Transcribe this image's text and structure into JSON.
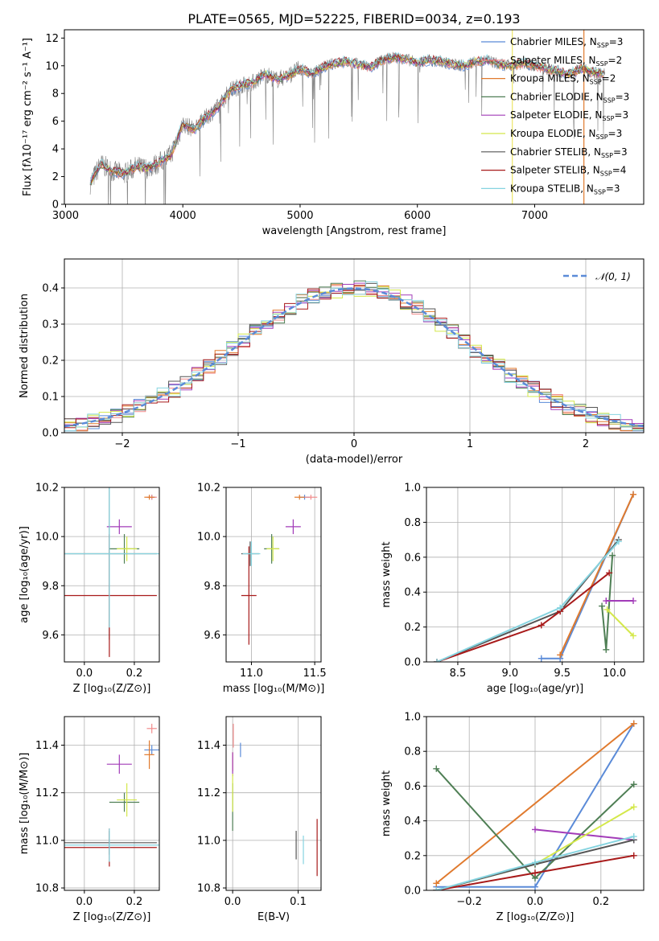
{
  "figure": {
    "title": "PLATE=0565, MJD=52225, FIBERID=0034, z=0.193"
  },
  "colors": {
    "Chabrier MILES": "#5b8bd8",
    "Salpeter MILES": "#f28c8c",
    "Kroupa MILES": "#e07a2e",
    "Chabrier ELODIE": "#4f7f55",
    "Salpeter ELODIE": "#a23bb8",
    "Kroupa ELODIE": "#d4e84a",
    "Chabrier STELIB": "#555555",
    "Salpeter STELIB": "#a81a1a",
    "Kroupa STELIB": "#86d4e0",
    "data": "#808080",
    "gaussian": "#5b8bd8"
  },
  "chart_data": [
    {
      "id": "spectrum",
      "type": "line",
      "title": "PLATE=0565, MJD=52225, FIBERID=0034, z=0.193",
      "xlabel": "wavelength [Angstrom, rest frame]",
      "ylabel": "Flux [fλ10⁻¹⁷ erg cm⁻² s⁻¹ A⁻¹]",
      "xlim": [
        2990,
        7930
      ],
      "ylim": [
        0,
        12.6
      ],
      "xticks": [
        "3000",
        "4000",
        "5000",
        "6000",
        "7000"
      ],
      "yticks": [
        "0",
        "2",
        "4",
        "6",
        "8",
        "10",
        "12"
      ],
      "grid": false,
      "legend_position": "top-right",
      "legend": [
        "Chabrier MILES, N_SSP=3",
        "Salpeter MILES, N_SSP=2",
        "Kroupa MILES, N_SSP=2",
        "Chabrier ELODIE, N_SSP=3",
        "Salpeter ELODIE, N_SSP=3",
        "Kroupa ELODIE, N_SSP=3",
        "Chabrier STELIB, N_SSP=3",
        "Salpeter STELIB, N_SSP=4",
        "Kroupa STELIB, N_SSP=3"
      ],
      "continuum": {
        "x": [
          3210,
          3300,
          3400,
          3500,
          3600,
          3700,
          3800,
          3900,
          4000,
          4100,
          4200,
          4300,
          4400,
          4500,
          4600,
          4700,
          4800,
          4900,
          5000,
          5100,
          5200,
          5300,
          5400,
          5500,
          5600,
          5700,
          5800,
          5900,
          6000,
          6100,
          6200,
          6300,
          6400,
          6500,
          6600,
          6700,
          6800,
          6900,
          7000,
          7100,
          7200,
          7300,
          7400,
          7500,
          7600
        ],
        "y": [
          1.5,
          2.9,
          2.4,
          2.2,
          2.7,
          2.6,
          3.0,
          3.6,
          5.8,
          5.4,
          6.3,
          7.0,
          8.2,
          8.6,
          8.8,
          9.4,
          9.0,
          9.3,
          9.8,
          9.4,
          9.9,
          10.2,
          10.3,
          10.1,
          9.9,
          10.4,
          10.6,
          10.5,
          10.2,
          10.4,
          10.3,
          10.1,
          10.0,
          10.3,
          10.4,
          10.1,
          10.0,
          10.2,
          10.0,
          9.8,
          9.6,
          9.4,
          9.8,
          9.5,
          9.4
        ]
      }
    },
    {
      "id": "residuals",
      "type": "histogram",
      "xlabel": "(data-model)/error",
      "ylabel": "Normed distribution",
      "xlim": [
        -2.5,
        2.5
      ],
      "ylim": [
        0,
        0.48
      ],
      "xticks": [
        "−2",
        "−1",
        "0",
        "1",
        "2"
      ],
      "yticks": [
        "0.0",
        "0.1",
        "0.2",
        "0.3",
        "0.4"
      ],
      "grid": true,
      "legend_position": "top-right",
      "legend": [
        "𝒩(0, 1)"
      ]
    },
    {
      "id": "age-vs-Z",
      "type": "scatter",
      "xlabel": "Z [log₁₀(Z/Z⊙)]",
      "ylabel": "age  [log₁₀(age/yr)]",
      "xlim": [
        -0.08,
        0.3
      ],
      "ylim": [
        9.49,
        10.2
      ],
      "xticks": [
        "0.0",
        "0.2"
      ],
      "yticks": [
        "9.6",
        "9.8",
        "10.0",
        "10.2"
      ],
      "grid": true,
      "points": [
        {
          "series": "Chabrier MILES",
          "x": 0.27,
          "y": 10.16,
          "xerr": 0.015,
          "yerr": 0.01
        },
        {
          "series": "Salpeter MILES",
          "x": 0.27,
          "y": 10.16,
          "xerr": 0.02,
          "yerr": 0.01
        },
        {
          "series": "Kroupa MILES",
          "x": 0.26,
          "y": 10.16,
          "xerr": 0.02,
          "yerr": 0.01
        },
        {
          "series": "Chabrier ELODIE",
          "x": 0.16,
          "y": 9.95,
          "xerr": 0.06,
          "yerr": 0.06
        },
        {
          "series": "Salpeter ELODIE",
          "x": 0.14,
          "y": 10.04,
          "xerr": 0.05,
          "yerr": 0.03
        },
        {
          "series": "Kroupa ELODIE",
          "x": 0.17,
          "y": 9.95,
          "xerr": 0.04,
          "yerr": 0.05
        },
        {
          "series": "Chabrier STELIB",
          "x": 0.1,
          "y": 9.93,
          "xerr": 0.19,
          "yerr": 0.35
        },
        {
          "series": "Salpeter STELIB",
          "x": 0.1,
          "y": 9.76,
          "xerr": 0.19,
          "yerr": 0.25
        },
        {
          "series": "Kroupa STELIB",
          "x": 0.1,
          "y": 9.93,
          "xerr": 0.2,
          "yerr": 0.3
        }
      ]
    },
    {
      "id": "age-vs-mass",
      "type": "scatter",
      "xlabel": "mass [log₁₀(M/M⊙)]",
      "ylabel": "",
      "xlim": [
        10.8,
        11.55
      ],
      "ylim": [
        9.49,
        10.2
      ],
      "xticks": [
        "11.0",
        "11.5"
      ],
      "yticks": [
        "9.6",
        "9.8",
        "10.0",
        "10.2"
      ],
      "grid": true,
      "points": [
        {
          "series": "Chabrier MILES",
          "x": 11.42,
          "y": 10.16,
          "xerr": 0.04,
          "yerr": 0.01
        },
        {
          "series": "Salpeter MILES",
          "x": 11.47,
          "y": 10.16,
          "xerr": 0.05,
          "yerr": 0.01
        },
        {
          "series": "Kroupa MILES",
          "x": 11.38,
          "y": 10.16,
          "xerr": 0.04,
          "yerr": 0.01
        },
        {
          "series": "Chabrier ELODIE",
          "x": 11.16,
          "y": 9.95,
          "xerr": 0.06,
          "yerr": 0.06
        },
        {
          "series": "Salpeter ELODIE",
          "x": 11.33,
          "y": 10.04,
          "xerr": 0.06,
          "yerr": 0.03
        },
        {
          "series": "Kroupa ELODIE",
          "x": 11.17,
          "y": 9.95,
          "xerr": 0.05,
          "yerr": 0.05
        },
        {
          "series": "Chabrier STELIB",
          "x": 10.99,
          "y": 9.93,
          "xerr": 0.07,
          "yerr": 0.05
        },
        {
          "series": "Salpeter STELIB",
          "x": 10.98,
          "y": 9.76,
          "xerr": 0.06,
          "yerr": 0.2
        },
        {
          "series": "Kroupa STELIB",
          "x": 11.0,
          "y": 9.93,
          "xerr": 0.07,
          "yerr": 0.05
        }
      ]
    },
    {
      "id": "weight-vs-age",
      "type": "line",
      "xlabel": "age  [log₁₀(age/yr)]",
      "ylabel": "mass weight",
      "xlim": [
        8.2,
        10.28
      ],
      "ylim": [
        0,
        1.0
      ],
      "xticks": [
        "8.5",
        "9.0",
        "9.5",
        "10.0"
      ],
      "yticks": [
        "0.0",
        "0.2",
        "0.4",
        "0.6",
        "0.8",
        "1.0"
      ],
      "grid": true,
      "series": [
        {
          "series": "Chabrier MILES",
          "x": [
            9.3,
            9.48,
            10.18
          ],
          "y": [
            0.02,
            0.02,
            0.96
          ]
        },
        {
          "series": "Kroupa MILES",
          "x": [
            9.48,
            10.18
          ],
          "y": [
            0.04,
            0.96
          ]
        },
        {
          "series": "Chabrier ELODIE",
          "x": [
            9.88,
            9.92,
            9.98
          ],
          "y": [
            0.32,
            0.07,
            0.61
          ]
        },
        {
          "series": "Salpeter ELODIE",
          "x": [
            9.92,
            10.18
          ],
          "y": [
            0.35,
            0.35
          ]
        },
        {
          "series": "Kroupa ELODIE",
          "x": [
            9.93,
            10.18
          ],
          "y": [
            0.3,
            0.15
          ]
        },
        {
          "series": "Chabrier STELIB",
          "x": [
            8.3,
            9.48,
            10.04
          ],
          "y": [
            0.0,
            0.29,
            0.7
          ]
        },
        {
          "series": "Salpeter STELIB",
          "x": [
            8.3,
            9.3,
            9.48,
            9.95
          ],
          "y": [
            0.0,
            0.21,
            0.29,
            0.51
          ]
        },
        {
          "series": "Kroupa STELIB",
          "x": [
            8.3,
            9.48,
            10.04
          ],
          "y": [
            0.0,
            0.31,
            0.69
          ]
        }
      ]
    },
    {
      "id": "mass-vs-Z",
      "type": "scatter",
      "xlabel": "Z [log₁₀(Z/Z⊙)]",
      "ylabel": "mass [log₁₀(M/M⊙)]",
      "xlim": [
        -0.08,
        0.3
      ],
      "ylim": [
        10.79,
        11.52
      ],
      "xticks": [
        "0.0",
        "0.2"
      ],
      "yticks": [
        "10.8",
        "11.0",
        "11.2",
        "11.4"
      ],
      "grid": true,
      "points": [
        {
          "series": "Chabrier MILES",
          "x": 0.27,
          "y": 11.38,
          "xerr": 0.03,
          "yerr": 0.02
        },
        {
          "series": "Salpeter MILES",
          "x": 0.27,
          "y": 11.47,
          "xerr": 0.02,
          "yerr": 0.02
        },
        {
          "series": "Kroupa MILES",
          "x": 0.26,
          "y": 11.36,
          "xerr": 0.02,
          "yerr": 0.06
        },
        {
          "series": "Chabrier ELODIE",
          "x": 0.16,
          "y": 11.16,
          "xerr": 0.06,
          "yerr": 0.04
        },
        {
          "series": "Salpeter ELODIE",
          "x": 0.14,
          "y": 11.32,
          "xerr": 0.05,
          "yerr": 0.04
        },
        {
          "series": "Kroupa ELODIE",
          "x": 0.17,
          "y": 11.17,
          "xerr": 0.04,
          "yerr": 0.07
        },
        {
          "series": "Chabrier STELIB",
          "x": 0.1,
          "y": 10.99,
          "xerr": 0.19,
          "yerr": 0.05
        },
        {
          "series": "Salpeter STELIB",
          "x": 0.1,
          "y": 10.97,
          "xerr": 0.19,
          "yerr": 0.08
        },
        {
          "series": "Kroupa STELIB",
          "x": 0.1,
          "y": 10.98,
          "xerr": 0.2,
          "yerr": 0.07
        }
      ]
    },
    {
      "id": "mass-vs-ebv",
      "type": "scatter",
      "xlabel": "E(B-V)",
      "ylabel": "",
      "xlim": [
        -0.01,
        0.135
      ],
      "ylim": [
        10.79,
        11.52
      ],
      "xticks": [
        "0.0",
        "0.1"
      ],
      "yticks": [
        "10.8",
        "11.0",
        "11.2",
        "11.4"
      ],
      "grid": true,
      "points": [
        {
          "series": "Chabrier MILES",
          "x": 0.012,
          "y": 11.38,
          "xerr": 0,
          "yerr": 0.03
        },
        {
          "series": "Salpeter MILES",
          "x": 0.001,
          "y": 11.44,
          "xerr": 0,
          "yerr": 0.05
        },
        {
          "series": "Kroupa MILES",
          "x": 0.0,
          "y": 11.33,
          "xerr": 0,
          "yerr": 0.04
        },
        {
          "series": "Chabrier ELODIE",
          "x": 0.0,
          "y": 11.14,
          "xerr": 0,
          "yerr": 0.1
        },
        {
          "series": "Salpeter ELODIE",
          "x": 0.0,
          "y": 11.32,
          "xerr": 0,
          "yerr": 0.05
        },
        {
          "series": "Kroupa ELODIE",
          "x": 0.0,
          "y": 11.2,
          "xerr": 0,
          "yerr": 0.08
        },
        {
          "series": "Chabrier STELIB",
          "x": 0.097,
          "y": 10.98,
          "xerr": 0,
          "yerr": 0.06
        },
        {
          "series": "Salpeter STELIB",
          "x": 0.129,
          "y": 10.97,
          "xerr": 0,
          "yerr": 0.12
        },
        {
          "series": "Kroupa STELIB",
          "x": 0.108,
          "y": 10.96,
          "xerr": 0,
          "yerr": 0.06
        }
      ]
    },
    {
      "id": "weight-vs-Z",
      "type": "line",
      "xlabel": "Z [log₁₀(Z/Z⊙)]",
      "ylabel": "mass weight",
      "xlim": [
        -0.33,
        0.33
      ],
      "ylim": [
        0,
        1.0
      ],
      "xticks": [
        "−0.2",
        "0.0",
        "0.2"
      ],
      "yticks": [
        "0.0",
        "0.2",
        "0.4",
        "0.6",
        "0.8",
        "1.0"
      ],
      "grid": true,
      "series": [
        {
          "series": "Chabrier MILES",
          "x": [
            -0.3,
            0.0,
            0.3
          ],
          "y": [
            0.02,
            0.02,
            0.96
          ]
        },
        {
          "series": "Kroupa MILES",
          "x": [
            -0.3,
            0.3
          ],
          "y": [
            0.04,
            0.96
          ]
        },
        {
          "series": "Chabrier ELODIE",
          "x": [
            -0.3,
            0.0,
            0.3
          ],
          "y": [
            0.7,
            0.07,
            0.61
          ]
        },
        {
          "series": "Salpeter ELODIE",
          "x": [
            0.0,
            0.3
          ],
          "y": [
            0.35,
            0.29
          ]
        },
        {
          "series": "Kroupa ELODIE",
          "x": [
            -0.3,
            0.0,
            0.3
          ],
          "y": [
            0.0,
            0.15,
            0.48
          ]
        },
        {
          "series": "Chabrier STELIB",
          "x": [
            -0.3,
            0.0,
            0.3
          ],
          "y": [
            0.0,
            0.15,
            0.29
          ]
        },
        {
          "series": "Salpeter STELIB",
          "x": [
            -0.3,
            0.0,
            0.3
          ],
          "y": [
            0.0,
            0.1,
            0.2
          ]
        },
        {
          "series": "Kroupa STELIB",
          "x": [
            -0.3,
            0.0,
            0.3
          ],
          "y": [
            0.0,
            0.16,
            0.31
          ]
        }
      ]
    }
  ]
}
